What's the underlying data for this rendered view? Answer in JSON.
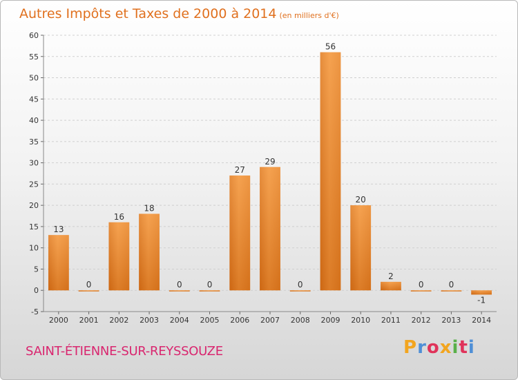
{
  "header": {
    "title": "Autres Impôts et Taxes de 2000 à 2014",
    "unit": "(en milliers d'€)"
  },
  "footer": {
    "commune": "SAINT-ÉTIENNE-SUR-REYSSOUZE",
    "logo": "Proxiti",
    "logo_colors": [
      "#f2a51f",
      "#4f8fd6",
      "#e0335a",
      "#f2a51f",
      "#5ab04a",
      "#e0335a",
      "#4f8fd6"
    ]
  },
  "chart_data": {
    "type": "bar",
    "title": "Autres Impôts et Taxes de 2000 à 2014",
    "subtitle": "(en milliers d'€)",
    "categories": [
      "2000",
      "2001",
      "2002",
      "2003",
      "2004",
      "2005",
      "2006",
      "2007",
      "2008",
      "2009",
      "2010",
      "2011",
      "2012",
      "2013",
      "2014"
    ],
    "values": [
      13,
      0,
      16,
      18,
      0,
      0,
      27,
      29,
      0,
      56,
      20,
      2,
      0,
      0,
      -1
    ],
    "data_labels": [
      "13",
      "0",
      "16",
      "18",
      "0",
      "0",
      "27",
      "29",
      "0",
      "56",
      "20",
      "2",
      "0",
      "0",
      "-1"
    ],
    "yticks": [
      "-5",
      "0",
      "5",
      "10",
      "15",
      "20",
      "25",
      "30",
      "35",
      "40",
      "45",
      "50",
      "55",
      "60"
    ],
    "ylim": [
      -5,
      60
    ],
    "grid": true,
    "legend": "none",
    "bar_color": "#f0913a",
    "bar_color_dark": "#d2701c"
  }
}
